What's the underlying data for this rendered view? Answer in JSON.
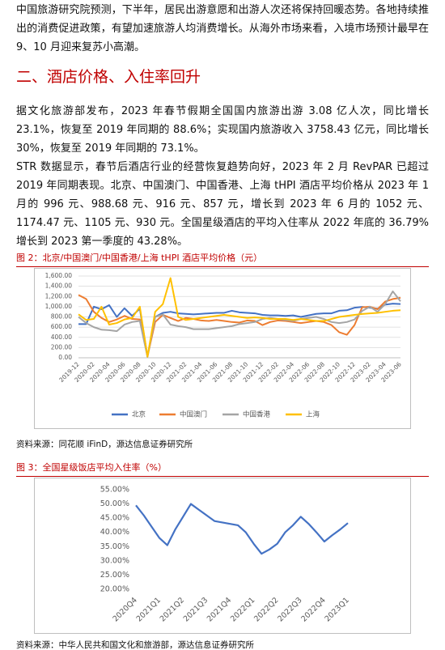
{
  "intro": "中国旅游研究院预测，下半年，居民出游意愿和出游人次还将保持回暖态势。各地持续推出的消费促进政策，有望加速旅游人均消费增长。从海外市场来看，入境市场预计最早在 9、10 月迎来复苏小高潮。",
  "section_title": "二、酒店价格、入住率回升",
  "body": [
    "据文化旅游部发布，2023 年春节假期全国国内旅游出游 3.08 亿人次，同比增长 23.1%，恢复至 2019 年同期的 88.6%；实现国内旅游收入 3758.43 亿元，同比增长 30%，恢复至 2019 年同期的 73.1%。",
    "STR 数据显示，春节后酒店行业的经营恢复趋势向好，2023 年 2 月 RevPAR 已超过 2019 年同期表现。北京、中国澳门、中国香港、上海 tHPI 酒店平均价格从 2023 年 1 月的 996 元、988.68 元、916 元、857 元，增长到 2023 年 6 月的 1052 元、1174.47 元、1105 元、930 元。全国星级酒店的平均入住率从 2022 年底的 36.79%增长到 2023 第一季度的 43.28%。"
  ],
  "figures": [
    {
      "caption": "图 2：北京/中国澳门/中国香港/上海 tHPI 酒店平均价格（元）",
      "source": "资料来源：同花顺 iFinD，源达信息证券研究所"
    },
    {
      "caption": "图 3：全国星级饭店平均入住率（%）",
      "source": "资料来源：中华人民共和国文化和旅游部，源达信息证券研究所"
    }
  ],
  "chart_data": [
    {
      "type": "line",
      "categories": [
        "2019-12",
        null,
        "2020-02",
        null,
        "2020-04",
        null,
        "2020-06",
        null,
        "2020-08",
        null,
        "2020-10",
        null,
        "2020-12",
        null,
        "2021-02",
        null,
        "2021-04",
        null,
        "2021-06",
        null,
        "2021-08",
        null,
        "2021-10",
        null,
        "2021-12",
        null,
        "2022-02",
        null,
        "2022-04",
        null,
        "2022-06",
        null,
        "2022-08",
        null,
        "2022-10",
        null,
        "2022-12",
        null,
        "2023-02",
        null,
        "2023-04",
        null,
        "2023-06"
      ],
      "series": [
        {
          "name": "北京",
          "color": "#4472c4",
          "values": [
            660,
            660,
            1000,
            950,
            1030,
            800,
            970,
            820,
            960,
            20,
            800,
            880,
            900,
            870,
            860,
            850,
            860,
            870,
            880,
            880,
            920,
            890,
            880,
            870,
            840,
            830,
            830,
            820,
            830,
            800,
            830,
            860,
            870,
            870,
            920,
            930,
            980,
            996,
            980,
            960,
            1040,
            1060,
            1052
          ]
        },
        {
          "name": "中国澳门",
          "color": "#ed7d31",
          "values": [
            1230,
            1150,
            900,
            780,
            700,
            750,
            820,
            760,
            750,
            30,
            700,
            840,
            780,
            720,
            780,
            760,
            730,
            720,
            740,
            720,
            700,
            690,
            730,
            720,
            640,
            700,
            730,
            720,
            700,
            680,
            700,
            720,
            700,
            640,
            500,
            450,
            640,
            988.68,
            1000,
            950,
            1100,
            1150,
            1174.47
          ]
        },
        {
          "name": "中国香港",
          "color": "#a5a5a5",
          "values": [
            800,
            680,
            600,
            550,
            540,
            520,
            650,
            700,
            720,
            20,
            800,
            850,
            650,
            620,
            600,
            560,
            560,
            560,
            580,
            600,
            620,
            660,
            680,
            700,
            760,
            780,
            760,
            740,
            720,
            760,
            780,
            800,
            760,
            700,
            680,
            700,
            750,
            916,
            1000,
            900,
            1050,
            1300,
            1105
          ]
        },
        {
          "name": "上海",
          "color": "#ffc000",
          "values": [
            850,
            740,
            760,
            1000,
            650,
            680,
            750,
            780,
            1000,
            20,
            900,
            1050,
            1560,
            800,
            740,
            760,
            780,
            800,
            820,
            840,
            820,
            800,
            780,
            790,
            780,
            760,
            760,
            760,
            740,
            760,
            740,
            720,
            720,
            760,
            800,
            820,
            840,
            857,
            870,
            880,
            900,
            920,
            930
          ]
        }
      ],
      "ylim": [
        0,
        1600
      ],
      "yticks": [
        {
          "value": 0,
          "label": "0.00"
        },
        {
          "value": 200,
          "label": "200.00"
        },
        {
          "value": 400,
          "label": "400.00"
        },
        {
          "value": 600,
          "label": "600.00"
        },
        {
          "value": 800,
          "label": "800.00"
        },
        {
          "value": 1000,
          "label": "1,000.00"
        },
        {
          "value": 1200,
          "label": "1,200.00"
        },
        {
          "value": 1400,
          "label": "1,400.00"
        },
        {
          "value": 1600,
          "label": "1,600.00"
        }
      ],
      "grid": true,
      "legend": "bottom"
    },
    {
      "type": "line",
      "categories": [
        "2020Q4",
        null,
        null,
        "2021Q1",
        null,
        null,
        "2021Q2",
        null,
        null,
        "2021Q3",
        null,
        null,
        "2021Q4",
        null,
        null,
        "2022Q1",
        null,
        null,
        "2022Q2",
        null,
        null,
        "2022Q3",
        null,
        null,
        "2022Q4",
        null,
        null,
        "2023Q1"
      ],
      "values": [
        49.5,
        46,
        42,
        38,
        35.5,
        41,
        45.5,
        50,
        48,
        46,
        44,
        43.5,
        43,
        42.5,
        40,
        36,
        32.5,
        34,
        36,
        40,
        42.5,
        45.5,
        43,
        40,
        36.79,
        39,
        41,
        43.28
      ],
      "color": "#4472c4",
      "ylim": [
        20,
        55
      ],
      "yticks": [
        {
          "value": 20,
          "label": "20.00%"
        },
        {
          "value": 25,
          "label": "25.00%"
        },
        {
          "value": 30,
          "label": "30.00%"
        },
        {
          "value": 35,
          "label": "35.00%"
        },
        {
          "value": 40,
          "label": "40.00%"
        },
        {
          "value": 45,
          "label": "45.00%"
        },
        {
          "value": 50,
          "label": "50.00%"
        },
        {
          "value": 55,
          "label": "55.00%"
        }
      ],
      "grid": false
    }
  ]
}
